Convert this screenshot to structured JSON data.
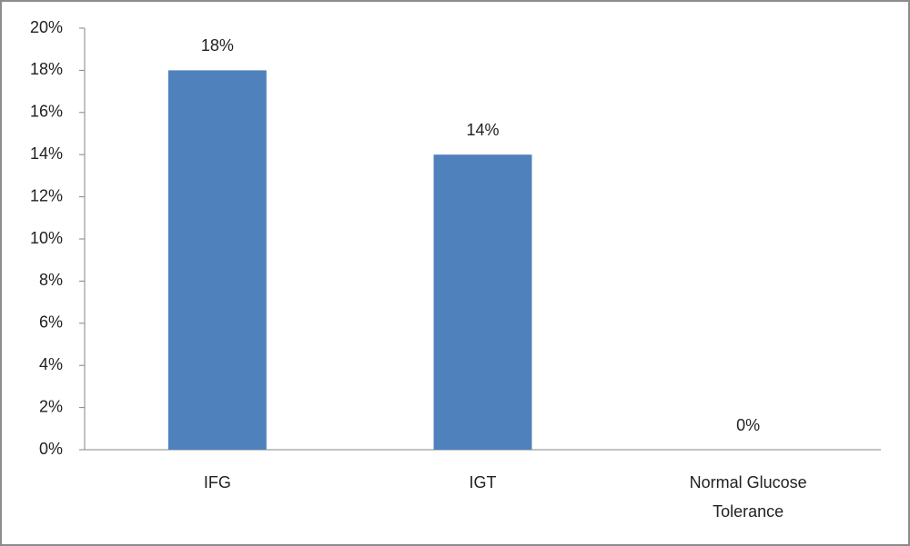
{
  "chart_data": {
    "type": "bar",
    "categories": [
      "IFG",
      "IGT",
      "Normal Glucose Tolerance"
    ],
    "values": [
      18,
      14,
      0
    ],
    "value_labels": [
      "18%",
      "14%",
      "0%"
    ],
    "color": "#4f81bd",
    "ylim": [
      0,
      20
    ],
    "yticks": [
      {
        "value": 0,
        "label": "0%"
      },
      {
        "value": 2,
        "label": "2%"
      },
      {
        "value": 4,
        "label": "4%"
      },
      {
        "value": 6,
        "label": "6%"
      },
      {
        "value": 8,
        "label": "8%"
      },
      {
        "value": 10,
        "label": "10%"
      },
      {
        "value": 12,
        "label": "12%"
      },
      {
        "value": 14,
        "label": "14%"
      },
      {
        "value": 16,
        "label": "16%"
      },
      {
        "value": 18,
        "label": "18%"
      },
      {
        "value": 20,
        "label": "20%"
      }
    ],
    "grid": false
  }
}
